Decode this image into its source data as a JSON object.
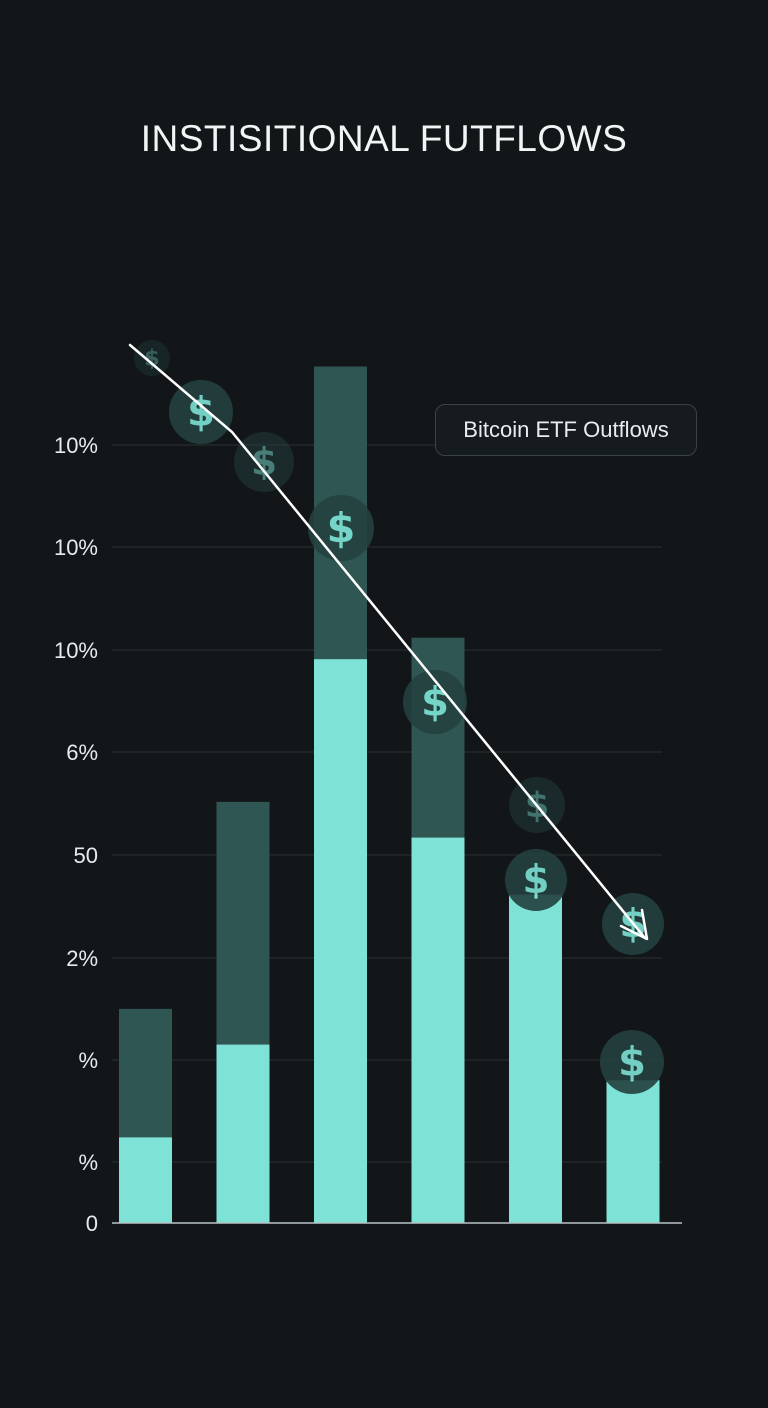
{
  "chart_data": {
    "type": "bar",
    "title": "INSTISITIONAL FUTFLOWS",
    "legend": "Bitcoin ETF Outflows",
    "y_tick_labels": [
      "10%",
      "10%",
      "10%",
      "6%",
      "50",
      "2%",
      "%",
      "%",
      "0"
    ],
    "categories": [
      "",
      "",
      "",
      "",
      "",
      ""
    ],
    "series": [
      {
        "values": [
          1.2,
          2.5,
          7.9,
          5.4,
          4.6,
          2.0
        ]
      },
      {
        "values": [
          1.8,
          3.4,
          4.1,
          2.8,
          0,
          0
        ]
      }
    ],
    "ylim": [
      0,
      10.9
    ],
    "trend": {
      "direction": "down"
    },
    "colors": {
      "background": "#121619",
      "bar_primary": "#7ee3d6",
      "bar_secondary": "#2f5652",
      "grid": "#2a3034",
      "coin": "#7ee3d6",
      "trend_line": "#ffffff"
    },
    "coin_symbol": "$"
  }
}
